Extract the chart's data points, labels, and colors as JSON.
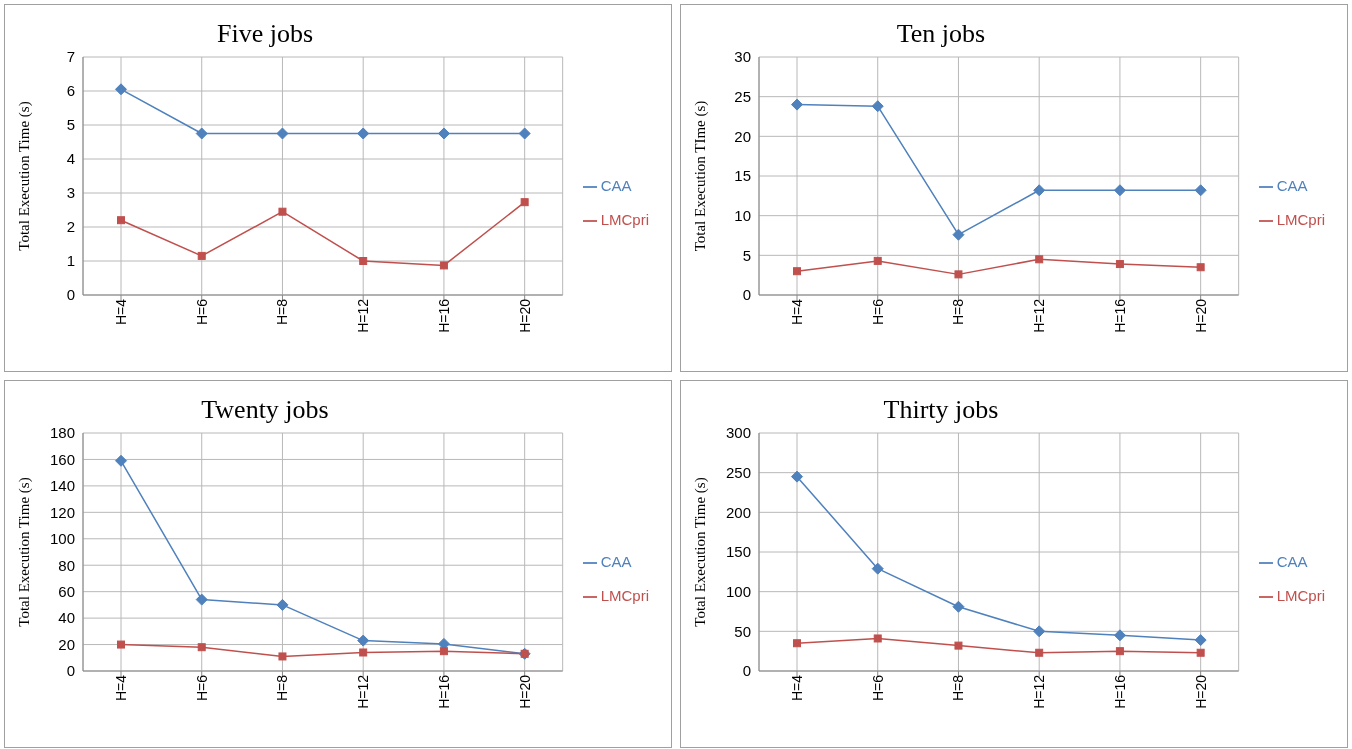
{
  "chart_data": [
    {
      "type": "line",
      "title": "Five jobs",
      "ylabel": "Total Execution  Time (s)",
      "categories": [
        "H=4",
        "H=6",
        "H=8",
        "H=12",
        "H=16",
        "H=20"
      ],
      "ylim": [
        0,
        7
      ],
      "yticks": [
        0,
        1,
        2,
        3,
        4,
        5,
        6,
        7
      ],
      "grid": true,
      "legend": "right",
      "series": [
        {
          "name": "CAA",
          "color": "#4f81bd",
          "marker": "diamond",
          "values": [
            6.05,
            4.75,
            4.75,
            4.75,
            4.75,
            4.75
          ]
        },
        {
          "name": "LMCpri",
          "color": "#c0504d",
          "marker": "square",
          "values": [
            2.2,
            1.15,
            2.45,
            1.0,
            0.87,
            2.73
          ]
        }
      ]
    },
    {
      "type": "line",
      "title": "Ten jobs",
      "ylabel": "Total Execution  TIme (s)",
      "categories": [
        "H=4",
        "H=6",
        "H=8",
        "H=12",
        "H=16",
        "H=20"
      ],
      "ylim": [
        0,
        30
      ],
      "yticks": [
        0,
        5,
        10,
        15,
        20,
        25,
        30
      ],
      "grid": true,
      "legend": "right",
      "series": [
        {
          "name": "CAA",
          "color": "#4f81bd",
          "marker": "diamond",
          "values": [
            24,
            23.8,
            7.6,
            13.2,
            13.2,
            13.2
          ]
        },
        {
          "name": "LMCpri",
          "color": "#c0504d",
          "marker": "square",
          "values": [
            3,
            4.3,
            2.6,
            4.5,
            3.9,
            3.5
          ]
        }
      ]
    },
    {
      "type": "line",
      "title": "Twenty  jobs",
      "ylabel": "Total Execution  Time (s)",
      "categories": [
        "H=4",
        "H=6",
        "H=8",
        "H=12",
        "H=16",
        "H=20"
      ],
      "ylim": [
        0,
        180
      ],
      "yticks": [
        0,
        20,
        40,
        60,
        80,
        100,
        120,
        140,
        160,
        180
      ],
      "grid": true,
      "legend": "right",
      "series": [
        {
          "name": "CAA",
          "color": "#4f81bd",
          "marker": "diamond",
          "values": [
            159,
            54,
            50,
            23,
            20.5,
            13
          ]
        },
        {
          "name": "LMCpri",
          "color": "#c0504d",
          "marker": "square",
          "values": [
            20,
            18,
            11,
            14,
            15,
            13
          ]
        }
      ]
    },
    {
      "type": "line",
      "title": "Thirty  jobs",
      "ylabel": "Total Execution  Time (s)",
      "categories": [
        "H=4",
        "H=6",
        "H=8",
        "H=12",
        "H=16",
        "H=20"
      ],
      "ylim": [
        0,
        300
      ],
      "yticks": [
        0,
        50,
        100,
        150,
        200,
        250,
        300
      ],
      "grid": true,
      "legend": "right",
      "series": [
        {
          "name": "CAA",
          "color": "#4f81bd",
          "marker": "diamond",
          "values": [
            245,
            129,
            81,
            50,
            45,
            39
          ]
        },
        {
          "name": "LMCpri",
          "color": "#c0504d",
          "marker": "square",
          "values": [
            35,
            41,
            32,
            23,
            25,
            23
          ]
        }
      ]
    }
  ]
}
